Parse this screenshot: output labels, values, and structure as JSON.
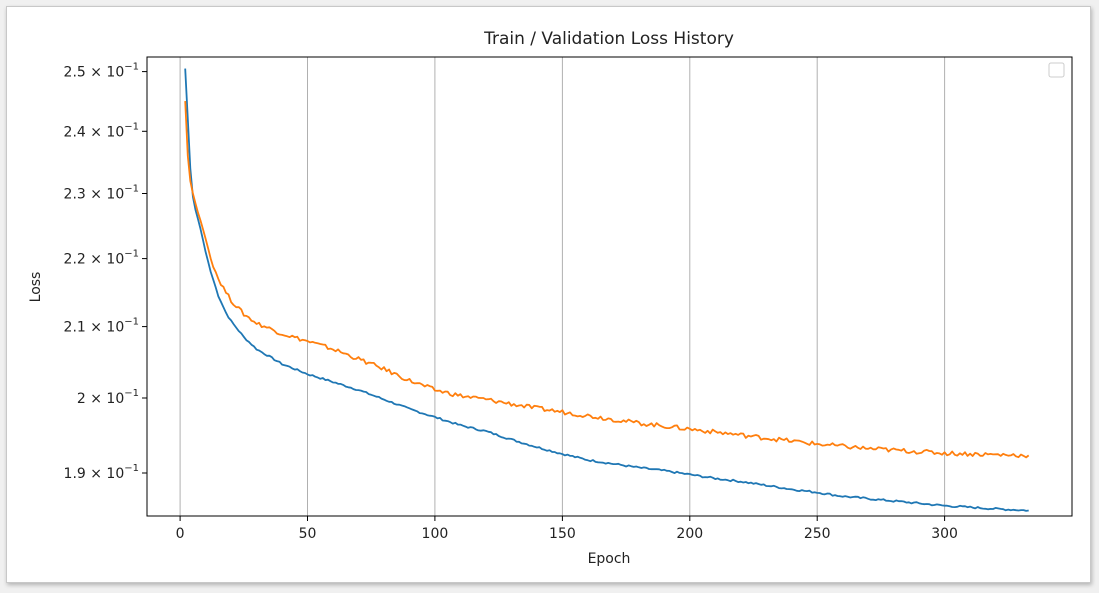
{
  "chart_data": {
    "type": "line",
    "title": "Train / Validation Loss History",
    "xlabel": "Epoch",
    "ylabel": "Loss",
    "xlim": [
      -13,
      350
    ],
    "ylim": [
      0.1845,
      0.2525
    ],
    "yscale": "log",
    "grid": "x",
    "legend": {
      "placement": "top-right",
      "entries": []
    },
    "xticks": [
      0,
      50,
      100,
      150,
      200,
      250,
      300
    ],
    "xtick_labels": [
      "0",
      "50",
      "100",
      "150",
      "200",
      "250",
      "300"
    ],
    "yticks": [
      {
        "value": 0.19,
        "mantissa": "1.9"
      },
      {
        "value": 0.2,
        "mantissa": "2"
      },
      {
        "value": 0.21,
        "mantissa": "2.1"
      },
      {
        "value": 0.22,
        "mantissa": "2.2"
      },
      {
        "value": 0.23,
        "mantissa": "2.3"
      },
      {
        "value": 0.24,
        "mantissa": "2.4"
      },
      {
        "value": 0.25,
        "mantissa": "2.5"
      }
    ],
    "ytick_suffix": "× 10",
    "ytick_exponent": "−1",
    "series": [
      {
        "color": "#1f77b4",
        "x": [
          2,
          3,
          4,
          5,
          6,
          7,
          8,
          10,
          12,
          15,
          18,
          20,
          25,
          30,
          40,
          50,
          60,
          70,
          80,
          90,
          100,
          110,
          120,
          130,
          140,
          150,
          160,
          170,
          180,
          190,
          200,
          210,
          220,
          230,
          240,
          250,
          260,
          270,
          280,
          290,
          300,
          310,
          320,
          333
        ],
        "y": [
          0.2505,
          0.242,
          0.234,
          0.2295,
          0.2275,
          0.226,
          0.2245,
          0.221,
          0.218,
          0.2145,
          0.212,
          0.2108,
          0.2085,
          0.2068,
          0.2047,
          0.2033,
          0.2022,
          0.2011,
          0.1998,
          0.1985,
          0.1974,
          0.1963,
          0.1955,
          0.1944,
          0.1934,
          0.1925,
          0.1917,
          0.1912,
          0.1907,
          0.1903,
          0.1898,
          0.1893,
          0.1889,
          0.1884,
          0.1879,
          0.1875,
          0.187,
          0.1867,
          0.1864,
          0.1861,
          0.1858,
          0.1856,
          0.1854,
          0.1852
        ]
      },
      {
        "color": "#ff7f0e",
        "x": [
          2,
          3,
          4,
          5,
          6,
          7,
          8,
          10,
          12,
          15,
          18,
          20,
          25,
          30,
          40,
          50,
          60,
          70,
          80,
          90,
          100,
          110,
          120,
          130,
          140,
          150,
          160,
          170,
          180,
          190,
          200,
          210,
          220,
          230,
          240,
          250,
          260,
          270,
          280,
          290,
          300,
          310,
          320,
          333
        ],
        "y": [
          0.245,
          0.236,
          0.232,
          0.23,
          0.2285,
          0.227,
          0.2258,
          0.223,
          0.22,
          0.217,
          0.215,
          0.2138,
          0.2118,
          0.2105,
          0.209,
          0.2079,
          0.2068,
          0.2054,
          0.204,
          0.2024,
          0.2011,
          0.2003,
          0.1998,
          0.1992,
          0.1986,
          0.1981,
          0.1976,
          0.1971,
          0.1966,
          0.1962,
          0.1958,
          0.1954,
          0.195,
          0.1946,
          0.1942,
          0.1938,
          0.1935,
          0.1932,
          0.193,
          0.1928,
          0.1926,
          0.1925,
          0.1924,
          0.1923
        ]
      }
    ]
  }
}
